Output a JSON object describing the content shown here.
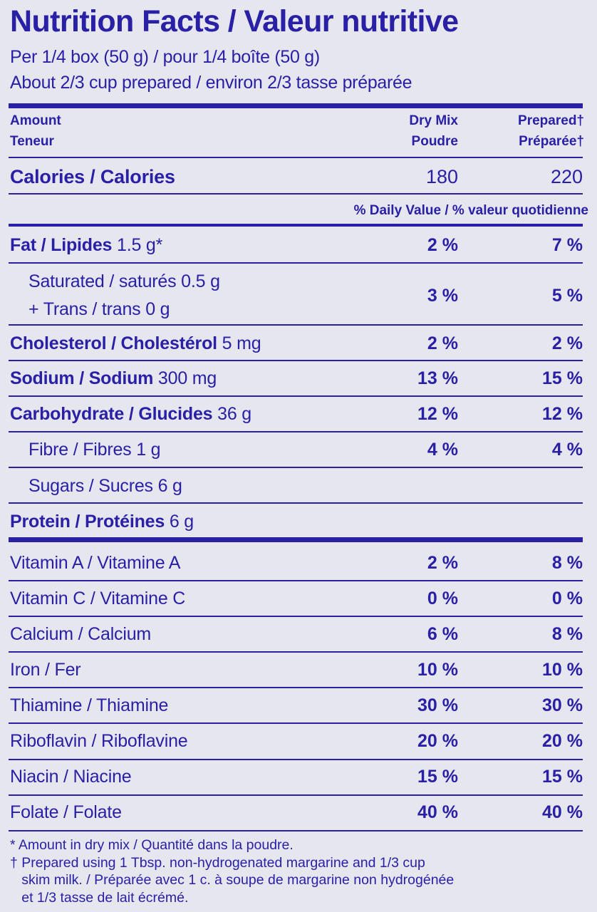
{
  "title": "Nutrition Facts / Valeur nutritive",
  "serving": "Per 1/4 box (50 g) / pour 1/4 boîte (50 g)",
  "prepared_serving": "About 2/3 cup prepared / environ 2/3 tasse préparée",
  "header": {
    "amount_en": "Amount",
    "amount_fr": "Teneur",
    "col1_en": "Dry Mix",
    "col1_fr": "Poudre",
    "col2_en": "Prepared†",
    "col2_fr": "Préparée†"
  },
  "calories": {
    "label": "Calories / Calories",
    "dry": "180",
    "prepared": "220"
  },
  "daily_value_label": "% Daily Value / % valeur quotidienne",
  "nutrients": [
    {
      "name": "Fat / Lipides",
      "amount": " 1.5 g*",
      "dry": "2 %",
      "prepared": "7 %"
    },
    {
      "name": "",
      "amount": "Saturated / saturés 0.5 g",
      "amount2": "+ Trans / trans 0 g",
      "indent": true,
      "dry": "3 %",
      "prepared": "5 %"
    },
    {
      "name": "Cholesterol / Cholestérol",
      "amount": " 5 mg",
      "dry": "2 %",
      "prepared": "2 %"
    },
    {
      "name": "Sodium / Sodium",
      "amount": " 300 mg",
      "dry": "13 %",
      "prepared": "15 %"
    },
    {
      "name": "Carbohydrate / Glucides",
      "amount": " 36 g",
      "dry": "12 %",
      "prepared": "12 %"
    },
    {
      "name": "",
      "amount": "Fibre / Fibres 1 g",
      "indent": true,
      "dry": "4 %",
      "prepared": "4 %"
    },
    {
      "name": "",
      "amount": "Sugars / Sucres 6 g",
      "indent": true,
      "dry": "",
      "prepared": ""
    },
    {
      "name": "Protein / Protéines",
      "amount": " 6 g",
      "dry": "",
      "prepared": ""
    }
  ],
  "vitamins": [
    {
      "name": "Vitamin A / Vitamine A",
      "dry": "2 %",
      "prepared": "8 %"
    },
    {
      "name": "Vitamin C / Vitamine C",
      "dry": "0 %",
      "prepared": "0 %"
    },
    {
      "name": "Calcium / Calcium",
      "dry": "6 %",
      "prepared": "8 %"
    },
    {
      "name": "Iron / Fer",
      "dry": "10 %",
      "prepared": "10 %"
    },
    {
      "name": "Thiamine / Thiamine",
      "dry": "30 %",
      "prepared": "30 %"
    },
    {
      "name": "Riboflavin / Riboflavine",
      "dry": "20 %",
      "prepared": "20 %"
    },
    {
      "name": "Niacin / Niacine",
      "dry": "15 %",
      "prepared": "15 %"
    },
    {
      "name": "Folate / Folate",
      "dry": "40 %",
      "prepared": "40 %"
    }
  ],
  "footnotes": [
    "* Amount in dry mix / Quantité dans la poudre.",
    "† Prepared using 1 Tbsp. non-hydrogenated margarine and 1/3 cup",
    "   skim milk. / Préparée avec 1 c. à soupe de margarine non hydrogénée",
    "   et 1/3 tasse de lait écrémé."
  ],
  "colors": {
    "ink": "#2a20a6",
    "background": "#e6e6ef"
  }
}
